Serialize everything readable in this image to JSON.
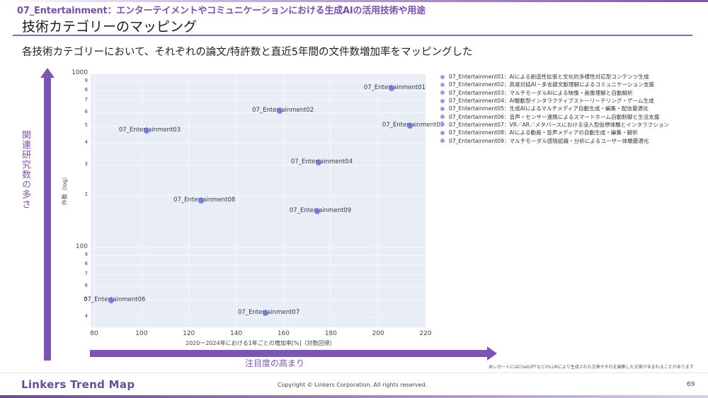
{
  "header": {
    "subtitle": "07_Entertainment：エンターテイメントやコミュニケーションにおける生成AIの活用技術や用途",
    "title": "技術カテゴリーのマッピング",
    "lead": "各技術カテゴリーにおいて、それぞれの論文/特許数と直近5年間の文件数増加率をマッピングした"
  },
  "axes_decor": {
    "y_arrow_label": "関連研究数の多さ",
    "x_arrow_label": "注目度の高まり"
  },
  "chart_data": {
    "type": "scatter",
    "title": "",
    "xlabel": "2020ー2024年における1年ごとの増加率[%]（対数回帰）",
    "ylabel": "件数（log）",
    "xlim": [
      80,
      220
    ],
    "ylim": [
      35,
      1000
    ],
    "yscale": "log",
    "x_ticks": [
      "80",
      "100",
      "120",
      "140",
      "160",
      "180",
      "200",
      "220"
    ],
    "y_ticks": [
      {
        "value": 1000,
        "label": "1000",
        "major": true
      },
      {
        "value": 900,
        "label": "9"
      },
      {
        "value": 800,
        "label": "8"
      },
      {
        "value": 700,
        "label": "7"
      },
      {
        "value": 600,
        "label": "6"
      },
      {
        "value": 500,
        "label": "5"
      },
      {
        "value": 400,
        "label": "4"
      },
      {
        "value": 300,
        "label": "3"
      },
      {
        "value": 200,
        "label": "2"
      },
      {
        "value": 100,
        "label": "100",
        "major": true
      },
      {
        "value": 90,
        "label": "9"
      },
      {
        "value": 80,
        "label": "8"
      },
      {
        "value": 70,
        "label": "7"
      },
      {
        "value": 60,
        "label": "6"
      },
      {
        "value": 50,
        "label": "5"
      },
      {
        "value": 40,
        "label": "4"
      }
    ],
    "grid": true,
    "legend_position": "right",
    "points": [
      {
        "name": "07_Entertainment01",
        "x": 205.6,
        "y": 822,
        "label": "07_Entertainment01"
      },
      {
        "name": "07_Entertainment02",
        "x": 158.4,
        "y": 609,
        "label": "07_Entertainment02"
      },
      {
        "name": "07_Entertainment03",
        "x": 102.1,
        "y": 469,
        "label": "07_Entertainment03"
      },
      {
        "name": "07_Entertainment04",
        "x": 174.8,
        "y": 308,
        "label": "07_Entertainment04"
      },
      {
        "name": "07_Entertainment05",
        "x": 213.4,
        "y": 500,
        "label": "07_Entertainment05"
      },
      {
        "name": "07_Entertainment06",
        "x": 87.2,
        "y": 49.6,
        "label": "07_Entertainment06"
      },
      {
        "name": "07_Entertainment07",
        "x": 152.4,
        "y": 41.9,
        "label": "07_Entertainment07"
      },
      {
        "name": "07_Entertainment08",
        "x": 125.2,
        "y": 185,
        "label": "07_Entertainment08"
      },
      {
        "name": "07_Entertainment09",
        "x": 174.2,
        "y": 161,
        "label": "07_Entertainment09"
      }
    ],
    "legend": [
      "07_Entertainment01：AIによる創造性拡張と文化的多様性対応型コンテンツ生成",
      "07_Entertainment02：高度対話AI・多言語文脈理解によるコミュニケーション支援",
      "07_Entertainment03：マルチモーダルAIによる映像・画像理解と自動解析",
      "07_Entertainment04：AI駆動型インタラクティブストーリーテリング・ゲーム生成",
      "07_Entertainment05：生成AIによるマルチメディア自動生成・編集・配信最適化",
      "07_Entertainment06：音声・センサー連携によるスマートホーム自動制御と生活支援",
      "07_Entertainment07：VR／AR／メタバースにおける没入型仮想体験とインタラクション",
      "07_Entertainment08：AIによる動画・音声メディアの自動生成・編集・解析",
      "07_Entertainment09：マルチモーダル感情認識・分析によるユーザー体験最適化"
    ],
    "marker_color": "#6a6fd8",
    "plot_bg": "#e9edf6"
  },
  "footer": {
    "disclaimer": "本レポートにはChatGPTなどのLLMにより生成された文章やそれを編集した文章が含まれることがあります",
    "logo": "Linkers Trend Map",
    "copyright": "Copyright © Linkers Corporation. All rights reserved.",
    "page_number": "69"
  }
}
